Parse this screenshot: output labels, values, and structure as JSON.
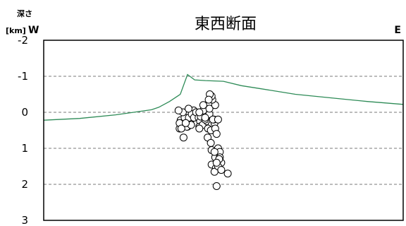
{
  "chart_data": {
    "type": "scatter",
    "title": "東西断面",
    "ylabel": "深さ",
    "yunit": "[km]",
    "direction_left": "W",
    "direction_right": "E",
    "y_ticks": [
      "-2",
      "-1",
      "0",
      "1",
      "2",
      "3"
    ],
    "ylim": [
      -2,
      3
    ],
    "y_inverted": true,
    "grid": "horizontal-dashed",
    "x_axis_labeled": false,
    "topography": {
      "color": "#2e8b57",
      "x": [
        0,
        0.1,
        0.2,
        0.3,
        0.32,
        0.35,
        0.38,
        0.4,
        0.42,
        0.45,
        0.5,
        0.55,
        0.6,
        0.7,
        0.8,
        0.9,
        1.0
      ],
      "depth": [
        0.22,
        0.17,
        0.07,
        -0.07,
        -0.14,
        -0.3,
        -0.5,
        -1.05,
        -0.9,
        -0.88,
        -0.86,
        -0.74,
        -0.66,
        -0.5,
        -0.4,
        -0.3,
        -0.22
      ]
    },
    "hypocenters": {
      "x": [
        0.378,
        0.389,
        0.4,
        0.381,
        0.395,
        0.408,
        0.378,
        0.392,
        0.404,
        0.387,
        0.375,
        0.398,
        0.41,
        0.383,
        0.417,
        0.412,
        0.418,
        0.395,
        0.424,
        0.403,
        0.389,
        0.431,
        0.435,
        0.438,
        0.433,
        0.442,
        0.437,
        0.455,
        0.444,
        0.461,
        0.433,
        0.449,
        0.467,
        0.475,
        0.457,
        0.449,
        0.433,
        0.461,
        0.473,
        0.456,
        0.465,
        0.444,
        0.465,
        0.471,
        0.477,
        0.481,
        0.485,
        0.477,
        0.469,
        0.467,
        0.462,
        0.459,
        0.485,
        0.49,
        0.477,
        0.467,
        0.49,
        0.494,
        0.479,
        0.475,
        0.485,
        0.488,
        0.481,
        0.494,
        0.512,
        0.467,
        0.475,
        0.481
      ],
      "depth": [
        0.45,
        0.38,
        0.4,
        0.22,
        0.3,
        0.22,
        0.3,
        0.15,
        0.15,
        0.0,
        -0.05,
        0.4,
        0.35,
        0.45,
        -0.05,
        0.05,
        0.15,
        0.3,
        0.0,
        -0.1,
        0.7,
        0.15,
        0.25,
        0.05,
        0.4,
        0.35,
        0.12,
        0.25,
        -0.05,
        0.05,
        0.0,
        0.2,
        0.35,
        0.3,
        0.45,
        0.15,
        0.45,
        -0.1,
        0.2,
        0.7,
        0.85,
        -0.2,
        0.5,
        0.2,
        0.45,
        0.6,
        0.2,
        -0.2,
        -0.35,
        -0.45,
        -0.5,
        -0.35,
        1.0,
        1.1,
        1.25,
        1.45,
        1.25,
        1.4,
        1.55,
        1.65,
        1.5,
        1.3,
        1.4,
        1.6,
        1.7,
        1.05,
        1.1,
        2.05
      ]
    }
  }
}
